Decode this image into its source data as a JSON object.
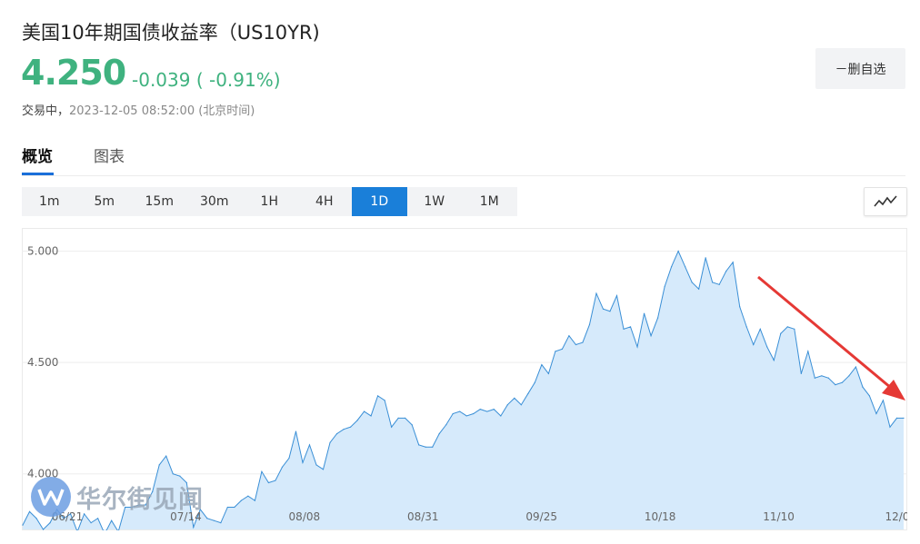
{
  "header": {
    "title": "美国10年期国债收益率（US10YR)",
    "price": "4.250",
    "change": "-0.039 ( -0.91%)",
    "status_label": "交易中，",
    "timestamp": "2023-12-05 08:52:00 (北京时间)",
    "favorite_button": "－删自选",
    "change_color": "#3fb27f"
  },
  "tabs": [
    {
      "label": "概览",
      "active": true
    },
    {
      "label": "图表",
      "active": false
    }
  ],
  "intervals": [
    {
      "label": "1m",
      "active": false
    },
    {
      "label": "5m",
      "active": false
    },
    {
      "label": "15m",
      "active": false
    },
    {
      "label": "30m",
      "active": false
    },
    {
      "label": "1H",
      "active": false
    },
    {
      "label": "4H",
      "active": false
    },
    {
      "label": "1D",
      "active": true
    },
    {
      "label": "1W",
      "active": false
    },
    {
      "label": "1M",
      "active": false
    }
  ],
  "chart_type_icon": "line-chart-icon",
  "chart_data": {
    "type": "area",
    "ylim": [
      3.75,
      5.1
    ],
    "yticks": [
      "4.000",
      "4.500",
      "5.000"
    ],
    "ytick_values": [
      4.0,
      4.5,
      5.0
    ],
    "xticks": [
      "06/21",
      "07/14",
      "08/08",
      "08/31",
      "09/25",
      "10/18",
      "11/10",
      "12/0"
    ],
    "grid": "horizontal",
    "line_color": "#3a8fd6",
    "fill_color": "#d6eafb",
    "annotation": "red-arrow-pointing-down-right",
    "series": [
      {
        "values": [
          3.77,
          3.83,
          3.8,
          3.75,
          3.78,
          3.84,
          3.8,
          3.82,
          3.74,
          3.82,
          3.78,
          3.8,
          3.73,
          3.79,
          3.74,
          3.85,
          3.85,
          3.86,
          3.86,
          3.92,
          4.04,
          4.08,
          4.0,
          3.99,
          3.96,
          3.76,
          3.84,
          3.8,
          3.79,
          3.78,
          3.85,
          3.85,
          3.88,
          3.9,
          3.88,
          4.01,
          3.96,
          3.97,
          4.03,
          4.07,
          4.19,
          4.05,
          4.13,
          4.04,
          4.02,
          4.14,
          4.18,
          4.2,
          4.21,
          4.24,
          4.28,
          4.26,
          4.35,
          4.33,
          4.21,
          4.25,
          4.25,
          4.22,
          4.13,
          4.12,
          4.12,
          4.18,
          4.22,
          4.27,
          4.28,
          4.26,
          4.27,
          4.29,
          4.28,
          4.29,
          4.26,
          4.31,
          4.34,
          4.31,
          4.36,
          4.41,
          4.49,
          4.45,
          4.55,
          4.56,
          4.62,
          4.58,
          4.59,
          4.67,
          4.81,
          4.74,
          4.73,
          4.8,
          4.65,
          4.66,
          4.57,
          4.72,
          4.62,
          4.7,
          4.84,
          4.93,
          5.0,
          4.93,
          4.86,
          4.83,
          4.97,
          4.86,
          4.85,
          4.91,
          4.95,
          4.75,
          4.66,
          4.58,
          4.65,
          4.57,
          4.51,
          4.63,
          4.66,
          4.65,
          4.45,
          4.55,
          4.43,
          4.44,
          4.43,
          4.4,
          4.41,
          4.44,
          4.48,
          4.39,
          4.35,
          4.27,
          4.33,
          4.21,
          4.25,
          4.25
        ]
      }
    ]
  },
  "watermark": {
    "text": "华尔街见闻",
    "logo_icon": "wallstreetcn-logo-icon"
  }
}
